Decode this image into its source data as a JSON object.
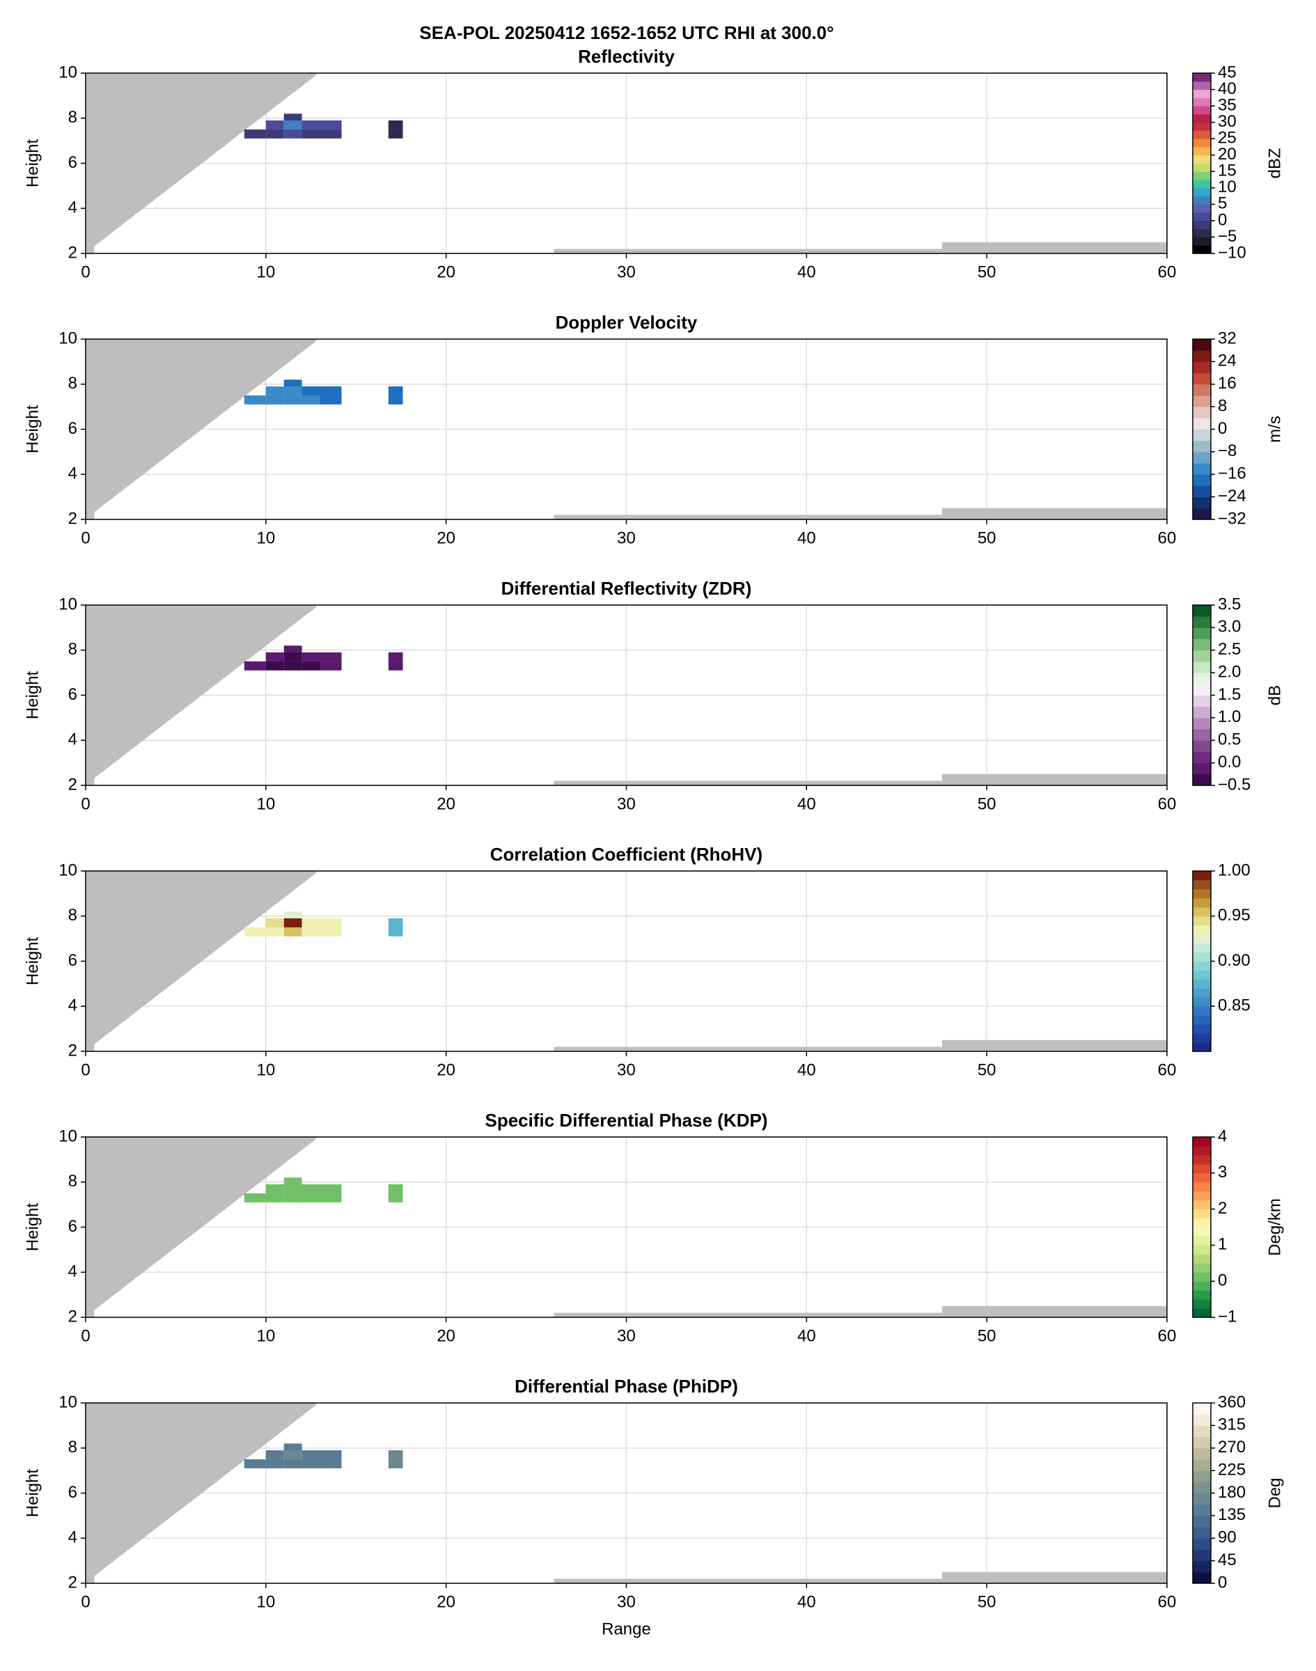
{
  "title": "SEA-POL 20250412 1652-1652 UTC RHI at 300.0°",
  "chart_data": [
    {
      "type": "heatmap",
      "title": "Reflectivity",
      "ylabel": "Height",
      "xlim": [
        0,
        60
      ],
      "xticks": [
        0,
        10,
        20,
        30,
        40,
        50,
        60
      ],
      "ylim": [
        2,
        10
      ],
      "yticks": [
        2,
        4,
        6,
        8,
        10
      ],
      "grid": true,
      "x_bins": [
        8.8,
        10,
        11,
        12,
        13,
        14.2,
        16.8,
        17.6
      ],
      "y_bins": [
        7.1,
        7.5,
        7.9,
        8.2
      ],
      "values": [
        [
          -2,
          -1,
          2,
          -1,
          -2,
          null,
          -3
        ],
        [
          null,
          0,
          6,
          1,
          0,
          null,
          -3
        ],
        [
          null,
          null,
          -1,
          null,
          null,
          null,
          null
        ]
      ],
      "colorbar": {
        "label": "dBZ",
        "lim": [
          -10,
          45
        ],
        "ticks": [
          {
            "value": -10,
            "label": "−10"
          },
          {
            "value": -5,
            "label": "−5"
          },
          0,
          5,
          10,
          15,
          20,
          25,
          30,
          35,
          40,
          45
        ],
        "colors": [
          "#000000",
          "#1c1c2e",
          "#2d2a4e",
          "#3c3a78",
          "#4b4a9a",
          "#5d5fb3",
          "#3f7fc0",
          "#2ea8c8",
          "#3fc4a0",
          "#7fd07a",
          "#c8dc6a",
          "#f2dc7a",
          "#f5b850",
          "#ee8a3a",
          "#e05a35",
          "#c8303a",
          "#b82050",
          "#d04a8a",
          "#e07ab4",
          "#e8a6d4",
          "#b064a8",
          "#7a2878"
        ]
      }
    },
    {
      "type": "heatmap",
      "title": "Doppler Velocity",
      "ylabel": "Height",
      "xlim": [
        0,
        60
      ],
      "xticks": [
        0,
        10,
        20,
        30,
        40,
        50,
        60
      ],
      "ylim": [
        2,
        10
      ],
      "yticks": [
        2,
        4,
        6,
        8,
        10
      ],
      "grid": true,
      "x_bins": [
        8.8,
        10,
        11,
        12,
        13,
        14.2,
        16.8,
        17.6
      ],
      "y_bins": [
        7.1,
        7.5,
        7.9,
        8.2
      ],
      "values": [
        [
          -13,
          -14,
          -14,
          -13,
          -18,
          null,
          -18
        ],
        [
          null,
          -14,
          -15,
          -18,
          -19,
          null,
          -20
        ],
        [
          null,
          null,
          -17,
          null,
          null,
          null,
          null
        ]
      ],
      "colorbar": {
        "label": "m/s",
        "lim": [
          -32,
          32
        ],
        "ticks": [
          {
            "value": -32,
            "label": "−32"
          },
          {
            "value": -24,
            "label": "−24"
          },
          {
            "value": -16,
            "label": "−16"
          },
          {
            "value": -8,
            "label": "−8"
          },
          0,
          8,
          16,
          24,
          32
        ],
        "colors": [
          "#1a1a4a",
          "#12306e",
          "#1550a0",
          "#1f6fbf",
          "#3a8ac8",
          "#6aa6cc",
          "#9bbccb",
          "#c8d6dc",
          "#efe6e6",
          "#e8c8c0",
          "#dca090",
          "#d07860",
          "#c44a3a",
          "#a82a28",
          "#801818",
          "#4a0a10"
        ]
      }
    },
    {
      "type": "heatmap",
      "title": "Differential Reflectivity (ZDR)",
      "ylabel": "Height",
      "xlim": [
        0,
        60
      ],
      "xticks": [
        0,
        10,
        20,
        30,
        40,
        50,
        60
      ],
      "ylim": [
        2,
        10
      ],
      "yticks": [
        2,
        4,
        6,
        8,
        10
      ],
      "grid": true,
      "x_bins": [
        8.8,
        10,
        11,
        12,
        13,
        14.2,
        16.8,
        17.6
      ],
      "y_bins": [
        7.1,
        7.5,
        7.9,
        8.2
      ],
      "values": [
        [
          -0.2,
          -0.3,
          -0.4,
          -0.3,
          -0.2,
          null,
          -0.2
        ],
        [
          null,
          -0.2,
          -0.3,
          -0.2,
          -0.2,
          null,
          -0.2
        ],
        [
          null,
          null,
          -0.2,
          null,
          null,
          null,
          null
        ]
      ],
      "colorbar": {
        "label": "dB",
        "lim": [
          -0.5,
          3.5
        ],
        "ticks": [
          {
            "value": -0.5,
            "label": "−0.5"
          },
          {
            "value": 0,
            "label": "0.0"
          },
          0.5,
          {
            "value": 1,
            "label": "1.0"
          },
          1.5,
          {
            "value": 2,
            "label": "2.0"
          },
          2.5,
          {
            "value": 3,
            "label": "3.0"
          },
          3.5
        ],
        "colors": [
          "#3d0a4e",
          "#5a1a6e",
          "#6f2d80",
          "#83478f",
          "#9a65a3",
          "#b288b8",
          "#cbaccf",
          "#e2d0e4",
          "#f2eef2",
          "#e6f2e2",
          "#c9e6c2",
          "#a3d39c",
          "#79bd78",
          "#4e9e57",
          "#267d3c",
          "#0a5a28"
        ]
      }
    },
    {
      "type": "heatmap",
      "title": "Correlation Coefficient (RhoHV)",
      "ylabel": "Height",
      "xlim": [
        0,
        60
      ],
      "xticks": [
        0,
        10,
        20,
        30,
        40,
        50,
        60
      ],
      "ylim": [
        2,
        10
      ],
      "yticks": [
        2,
        4,
        6,
        8,
        10
      ],
      "grid": true,
      "x_bins": [
        8.8,
        10,
        11,
        12,
        13,
        14.2,
        16.8,
        17.6
      ],
      "y_bins": [
        7.1,
        7.5,
        7.9,
        8.2
      ],
      "values": [
        [
          0.93,
          0.94,
          0.96,
          0.94,
          0.93,
          null,
          0.88
        ],
        [
          null,
          0.95,
          0.99,
          0.94,
          0.93,
          null,
          0.88
        ],
        [
          null,
          null,
          0.92,
          null,
          null,
          null,
          null
        ]
      ],
      "colorbar": {
        "label": "",
        "lim": [
          0.8,
          1.0
        ],
        "ticks": [
          0.85,
          {
            "value": 0.9,
            "label": "0.90"
          },
          0.95,
          {
            "value": 1,
            "label": "1.00"
          }
        ],
        "colors": [
          "#1a2a8a",
          "#1e3e9e",
          "#2050ae",
          "#2a64ba",
          "#3478c4",
          "#3e8cc8",
          "#4aa0cc",
          "#5ab4d0",
          "#70c6d4",
          "#8ad4d6",
          "#a6e0d6",
          "#c4eadc",
          "#e0f0d0",
          "#eef0b4",
          "#e6dc8a",
          "#d8c060",
          "#c89a3a",
          "#b4742a",
          "#9a4c1e",
          "#7a2010"
        ]
      }
    },
    {
      "type": "heatmap",
      "title": "Specific Differential Phase (KDP)",
      "ylabel": "Height",
      "xlim": [
        0,
        60
      ],
      "xticks": [
        0,
        10,
        20,
        30,
        40,
        50,
        60
      ],
      "ylim": [
        2,
        10
      ],
      "yticks": [
        2,
        4,
        6,
        8,
        10
      ],
      "grid": true,
      "x_bins": [
        8.8,
        10,
        11,
        12,
        13,
        14.2,
        16.8,
        17.6
      ],
      "y_bins": [
        7.1,
        7.5,
        7.9,
        8.2
      ],
      "values": [
        [
          0.1,
          0.1,
          0.1,
          0.1,
          0.1,
          null,
          0.1
        ],
        [
          null,
          0.1,
          0.1,
          0.1,
          0.1,
          null,
          0.1
        ],
        [
          null,
          null,
          0.1,
          null,
          null,
          null,
          null
        ]
      ],
      "colorbar": {
        "label": "Deg/km",
        "lim": [
          -1,
          4
        ],
        "ticks": [
          {
            "value": -1,
            "label": "−1"
          },
          0,
          1,
          2,
          3,
          4
        ],
        "colors": [
          "#006837",
          "#11823f",
          "#2a9a4a",
          "#4db05a",
          "#70c068",
          "#92ce6c",
          "#b2dc76",
          "#cee888",
          "#e4f29c",
          "#f6f8b4",
          "#fef0a4",
          "#fedc86",
          "#fdc068",
          "#fca252",
          "#f88446",
          "#ee6638",
          "#de4a2e",
          "#c82e26",
          "#b01a24",
          "#a50026"
        ]
      }
    },
    {
      "type": "heatmap",
      "title": "Differential Phase (PhiDP)",
      "xlabel": "Range",
      "ylabel": "Height",
      "xlim": [
        0,
        60
      ],
      "xticks": [
        0,
        10,
        20,
        30,
        40,
        50,
        60
      ],
      "ylim": [
        2,
        10
      ],
      "yticks": [
        2,
        4,
        6,
        8,
        10
      ],
      "grid": true,
      "x_bins": [
        8.8,
        10,
        11,
        12,
        13,
        14.2,
        16.8,
        17.6
      ],
      "y_bins": [
        7.1,
        7.5,
        7.9,
        8.2
      ],
      "values": [
        [
          150,
          152,
          155,
          152,
          150,
          null,
          160
        ],
        [
          null,
          152,
          158,
          154,
          150,
          null,
          160
        ],
        [
          null,
          null,
          155,
          null,
          null,
          null,
          null
        ]
      ],
      "colorbar": {
        "label": "Deg",
        "lim": [
          0,
          360
        ],
        "ticks": [
          0,
          45,
          90,
          135,
          180,
          225,
          270,
          315,
          360
        ],
        "colors": [
          "#0a1040",
          "#16245e",
          "#22387a",
          "#2e4c8a",
          "#3c5e90",
          "#4a6e92",
          "#5a7c92",
          "#6a8890",
          "#7a948e",
          "#8ea08e",
          "#a4ae92",
          "#bcbc9c",
          "#d2ccac",
          "#e4dcc0",
          "#f2ecd6",
          "#fcf8ee"
        ]
      }
    }
  ]
}
